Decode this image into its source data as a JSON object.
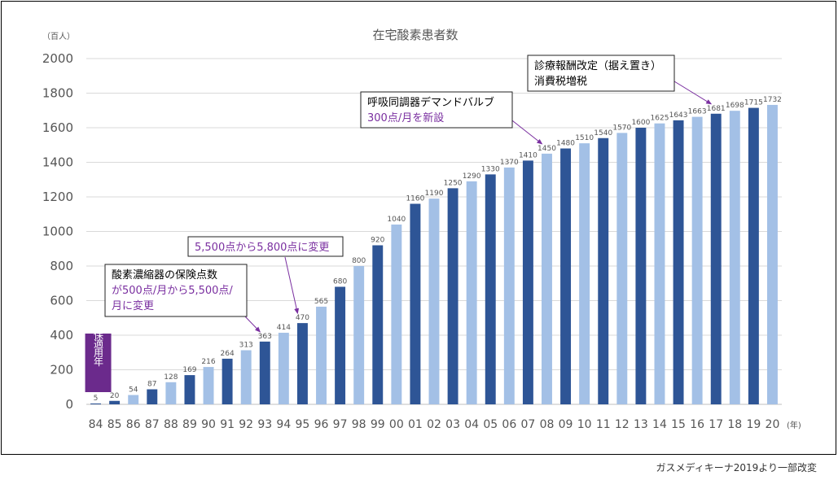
{
  "chart_data": {
    "type": "bar",
    "title": "在宅酸素患者数",
    "y_unit": "（百人）",
    "x_unit": "(年)",
    "ylim": [
      0,
      2000
    ],
    "yticks": [
      0,
      200,
      400,
      600,
      800,
      1000,
      1200,
      1400,
      1600,
      1800,
      2000
    ],
    "grid": true,
    "categories": [
      "84",
      "85",
      "86",
      "87",
      "88",
      "89",
      "90",
      "91",
      "92",
      "93",
      "94",
      "95",
      "96",
      "97",
      "98",
      "99",
      "00",
      "01",
      "02",
      "03",
      "04",
      "05",
      "06",
      "07",
      "08",
      "09",
      "10",
      "11",
      "12",
      "13",
      "14",
      "15",
      "16",
      "17",
      "18",
      "19",
      "20"
    ],
    "values": [
      5,
      20,
      54,
      87,
      128,
      169,
      216,
      264,
      313,
      363,
      414,
      470,
      565,
      680,
      800,
      920,
      1040,
      1160,
      1190,
      1250,
      1290,
      1330,
      1370,
      1410,
      1450,
      1480,
      1510,
      1540,
      1570,
      1600,
      1625,
      1643,
      1663,
      1681,
      1698,
      1715,
      1732
    ],
    "bar_colors": [
      "#2e5596",
      "#2e5596",
      "#a3c0e6",
      "#2e5596",
      "#a3c0e6",
      "#2e5596",
      "#a3c0e6",
      "#2e5596",
      "#a3c0e6",
      "#2e5596",
      "#a3c0e6",
      "#2e5596",
      "#a3c0e6",
      "#2e5596",
      "#a3c0e6",
      "#2e5596",
      "#a3c0e6",
      "#2e5596",
      "#a3c0e6",
      "#2e5596",
      "#a3c0e6",
      "#2e5596",
      "#a3c0e6",
      "#2e5596",
      "#a3c0e6",
      "#2e5596",
      "#a3c0e6",
      "#2e5596",
      "#a3c0e6",
      "#2e5596",
      "#a3c0e6",
      "#2e5596",
      "#a3c0e6",
      "#2e5596",
      "#a3c0e6",
      "#2e5596",
      "#a3c0e6"
    ],
    "highlight": {
      "label": "健保適用年",
      "color": "#6b2a8c",
      "category": "84"
    },
    "annotations": [
      {
        "lines": [
          "酸素濃縮器の保険点数",
          "が500点/月から5,500点/",
          "月に変更"
        ],
        "target_category": "93"
      },
      {
        "lines": [
          "5,500点から5,800点に変更"
        ],
        "target_category": "95"
      },
      {
        "lines": [
          "呼吸同調器デマンドバルブ",
          "300点/月を新設"
        ],
        "target_category": "08"
      },
      {
        "lines": [
          "診療報酬改定（据え置き）",
          "消費税増税"
        ],
        "target_category": "17"
      }
    ]
  },
  "source_note": "ガスメディキーナ2019より一部改変",
  "colors": {
    "dark_bar": "#2e5596",
    "light_bar": "#a3c0e6",
    "arrow": "#7a2fa0",
    "grid": "#d9d9d9"
  }
}
